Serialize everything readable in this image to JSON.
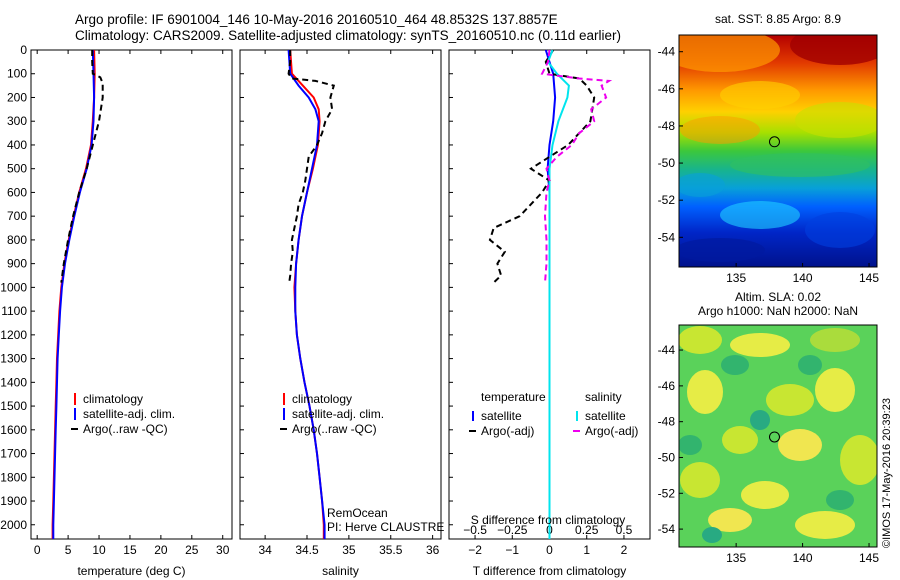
{
  "header": {
    "line1": "Argo profile: IF 6901004_146 10-May-2016 20160510_464 48.8532S 137.8857E",
    "line2": "Climatology: CARS2009. Satellite-adjusted climatology: synTS_20160510.nc (0.11d earlier)"
  },
  "credit": {
    "line1": "RemOcean",
    "line2": "PI: Herve CLAUSTRE"
  },
  "watermark": "©IMOS 17-May-2016 20:39:23",
  "colors": {
    "climatology": "#ff0000",
    "satellite": "#0000ff",
    "argo": "#000000",
    "salinity_satellite": "#00e5ee",
    "salinity_argo": "#ee00ee"
  },
  "chart_data": [
    {
      "id": "temperature",
      "type": "line",
      "xlabel": "temperature (deg C)",
      "xlim": [
        -1,
        31.5
      ],
      "ylim": [
        2060,
        0
      ],
      "xticks": [
        0,
        5,
        10,
        15,
        20,
        25,
        30
      ],
      "xtick_labels": [
        "0",
        "5",
        "10",
        "15",
        "20",
        "25",
        "30"
      ],
      "yticks": [
        0,
        100,
        200,
        300,
        400,
        500,
        600,
        700,
        800,
        900,
        1000,
        1100,
        1200,
        1300,
        1400,
        1500,
        1600,
        1700,
        1800,
        1900,
        2000
      ],
      "legend": [
        "climatology",
        "satellite-adj. clim.",
        "Argo(..raw -QC)"
      ],
      "series": [
        {
          "name": "climatology",
          "depth": [
            0,
            100,
            200,
            300,
            400,
            500,
            600,
            700,
            800,
            900,
            1000,
            1100,
            1200,
            1300,
            1400,
            1500,
            1600,
            1700,
            1800,
            1900,
            2000,
            2060
          ],
          "values": [
            9.2,
            9.3,
            9.2,
            9.0,
            8.7,
            7.9,
            6.8,
            5.9,
            5.1,
            4.4,
            3.9,
            3.6,
            3.4,
            3.2,
            3.1,
            3.0,
            2.9,
            2.8,
            2.7,
            2.6,
            2.5,
            2.5
          ]
        },
        {
          "name": "satellite-adj. clim.",
          "depth": [
            0,
            100,
            200,
            300,
            400,
            500,
            600,
            700,
            800,
            900,
            1000,
            1100,
            1200,
            1300,
            1400,
            1500,
            1600,
            1700,
            1800,
            1900,
            2000,
            2060
          ],
          "values": [
            9.0,
            9.1,
            9.2,
            9.1,
            8.8,
            8.0,
            6.9,
            6.0,
            5.2,
            4.5,
            4.0,
            3.7,
            3.5,
            3.3,
            3.2,
            3.1,
            3.0,
            2.9,
            2.8,
            2.7,
            2.6,
            2.6
          ]
        },
        {
          "name": "Argo(..raw -QC)",
          "depth": [
            0,
            50,
            100,
            115,
            140,
            200,
            300,
            400,
            500,
            600,
            700,
            800,
            900,
            980
          ],
          "values": [
            8.9,
            8.9,
            9.0,
            10.2,
            10.6,
            10.6,
            10.0,
            9.0,
            8.0,
            6.8,
            5.8,
            5.0,
            4.3,
            3.9
          ]
        }
      ]
    },
    {
      "id": "salinity",
      "type": "line",
      "xlabel": "salinity",
      "xlim": [
        33.7,
        36.1
      ],
      "ylim": [
        2060,
        0
      ],
      "xticks": [
        34,
        34.5,
        35,
        35.5,
        36
      ],
      "xtick_labels": [
        "34",
        "34.5",
        "35",
        "35.5",
        "36"
      ],
      "legend": [
        "climatology",
        "satellite-adj. clim.",
        "Argo(..raw -QC)"
      ],
      "series": [
        {
          "name": "climatology",
          "depth": [
            0,
            100,
            150,
            200,
            250,
            300,
            400,
            500,
            600,
            700,
            800,
            900,
            1000,
            1100,
            1200,
            1300,
            1400,
            1500,
            1600,
            1700,
            1800,
            1900,
            2000,
            2060
          ],
          "values": [
            34.3,
            34.32,
            34.45,
            34.58,
            34.64,
            34.65,
            34.63,
            34.57,
            34.5,
            34.44,
            34.4,
            34.37,
            34.35,
            34.36,
            34.38,
            34.42,
            34.47,
            34.53,
            34.58,
            34.62,
            34.65,
            34.68,
            34.7,
            34.7
          ]
        },
        {
          "name": "satellite-adj. clim.",
          "depth": [
            0,
            100,
            150,
            200,
            250,
            300,
            400,
            500,
            600,
            700,
            800,
            900,
            1000,
            1100,
            1200,
            1300,
            1400,
            1500,
            1600,
            1700,
            1800,
            1900,
            2000,
            2060
          ],
          "values": [
            34.28,
            34.3,
            34.4,
            34.52,
            34.6,
            34.64,
            34.62,
            34.56,
            34.5,
            34.44,
            34.4,
            34.37,
            34.36,
            34.36,
            34.38,
            34.42,
            34.47,
            34.53,
            34.58,
            34.62,
            34.65,
            34.68,
            34.71,
            34.71
          ]
        },
        {
          "name": "Argo(..raw -QC)",
          "depth": [
            0,
            50,
            100,
            120,
            130,
            150,
            200,
            250,
            300,
            350,
            400,
            450,
            500,
            550,
            600,
            650,
            700,
            750,
            800,
            850,
            900,
            950,
            975
          ],
          "values": [
            34.3,
            34.3,
            34.28,
            34.32,
            34.6,
            34.82,
            34.78,
            34.8,
            34.72,
            34.68,
            34.62,
            34.52,
            34.5,
            34.48,
            34.45,
            34.4,
            34.38,
            34.35,
            34.32,
            34.33,
            34.31,
            34.3,
            34.29
          ]
        }
      ]
    },
    {
      "id": "difference",
      "type": "line",
      "xlabel": "T difference from climatology",
      "x2label": "S difference from climatology",
      "xlim": [
        -2.7,
        2.7
      ],
      "ylim": [
        2060,
        0
      ],
      "xticks": [
        -2,
        -1,
        0,
        1,
        2
      ],
      "xtick_labels": [
        "−2",
        "−1",
        "0",
        "1",
        "2"
      ],
      "x2ticks": [
        -0.5,
        -0.25,
        0,
        0.25,
        0.5
      ],
      "x2tick_labels": [
        "−0.5",
        "−0.25",
        "0",
        "0.25",
        "0.5"
      ],
      "legend_groups": [
        {
          "title": "temperature",
          "items": [
            "satellite",
            "Argo(-adj)"
          ]
        },
        {
          "title": "salinity",
          "items": [
            "satellite",
            "Argo(-adj)"
          ]
        }
      ],
      "series": [
        {
          "name": "temperature satellite",
          "depth": [
            0,
            50,
            100,
            200,
            300,
            400,
            500,
            600,
            800,
            1000,
            1500,
            2000,
            2060
          ],
          "values": [
            -0.1,
            0.0,
            0.1,
            0.15,
            0.1,
            0.0,
            -0.05,
            0.0,
            0.0,
            0.0,
            0.0,
            0.0,
            0.0
          ]
        },
        {
          "name": "temperature Argo(-adj)",
          "depth": [
            0,
            50,
            100,
            120,
            150,
            200,
            300,
            400,
            450,
            500,
            550,
            600,
            700,
            750,
            800,
            850,
            900,
            950,
            980
          ],
          "values": [
            0.1,
            -0.1,
            0.0,
            0.8,
            1.0,
            1.2,
            1.1,
            0.5,
            0.0,
            -0.5,
            0.0,
            -0.2,
            -0.8,
            -1.5,
            -1.6,
            -1.2,
            -1.4,
            -1.3,
            -1.5
          ]
        },
        {
          "name": "salinity satellite",
          "depth": [
            0,
            50,
            100,
            150,
            200,
            300,
            400,
            500,
            600,
            800,
            1000,
            1500,
            2000,
            2060
          ],
          "values": [
            0.02,
            -0.01,
            0.05,
            0.13,
            0.12,
            0.06,
            0.02,
            0.0,
            0.0,
            0.0,
            0.0,
            0.0,
            0.0,
            0.0
          ]
        },
        {
          "name": "salinity Argo(-adj)",
          "depth": [
            0,
            50,
            100,
            120,
            130,
            150,
            200,
            250,
            300,
            350,
            400,
            450,
            500,
            550,
            600,
            700,
            800,
            900,
            980
          ],
          "values": [
            0.0,
            -0.01,
            -0.05,
            0.2,
            0.4,
            0.35,
            0.38,
            0.28,
            0.3,
            0.2,
            0.15,
            0.05,
            -0.02,
            0.0,
            -0.02,
            -0.03,
            -0.02,
            -0.02,
            -0.03
          ]
        }
      ]
    },
    {
      "id": "sst_map",
      "type": "heatmap",
      "title": "sat. SST: 8.85 Argo: 8.9",
      "xticks": [
        135,
        140,
        145
      ],
      "yticks": [
        -44,
        -46,
        -48,
        -50,
        -52,
        -54
      ],
      "ytick_labels": [
        "-44",
        "-46",
        "-48",
        "-50",
        "-52",
        "-54"
      ],
      "xlim": [
        130.7,
        145.6
      ],
      "ylim": [
        -55.6,
        -43.1
      ],
      "marker": {
        "lon": 137.8857,
        "lat": -48.8532
      }
    },
    {
      "id": "sla_map",
      "type": "heatmap",
      "title": "Altim. SLA: 0.02",
      "subtitle": "Argo h1000: NaN h2000: NaN",
      "xticks": [
        135,
        140,
        145
      ],
      "yticks": [
        -44,
        -46,
        -48,
        -50,
        -52,
        -54
      ],
      "ytick_labels": [
        "-44",
        "-46",
        "-48",
        "-50",
        "-52",
        "-54"
      ],
      "xlim": [
        130.7,
        145.6
      ],
      "ylim": [
        -55.0,
        -42.6
      ],
      "marker": {
        "lon": 137.8857,
        "lat": -48.8532
      }
    }
  ]
}
